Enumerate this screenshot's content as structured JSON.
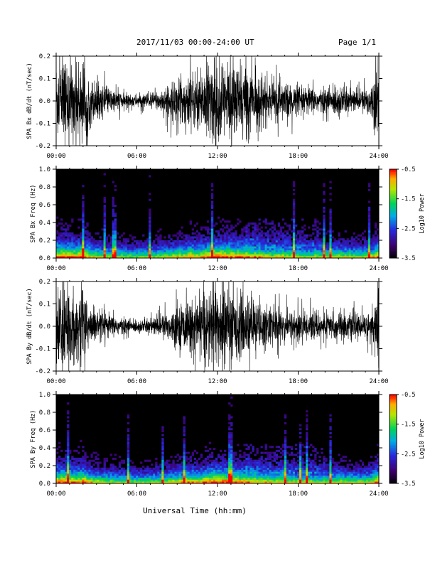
{
  "header": {
    "title": "2017/11/03  00:00-24:00 UT",
    "page": "Page 1/1"
  },
  "xaxis_label": "Universal Time (hh:mm)",
  "chart_data": [
    {
      "type": "line",
      "ylabel": "SPA Bx dB/dt (nT/sec)",
      "x_ticks": [
        "00:00",
        "06:00",
        "12:00",
        "18:00",
        "24:00"
      ],
      "xlim": [
        0,
        24
      ],
      "ylim": [
        -0.2,
        0.2
      ],
      "y_ticks": [
        "0.2",
        "0.1",
        "0.0",
        "-0.1",
        "-0.2"
      ],
      "envelope": {
        "x_hours": [
          0,
          0.5,
          1,
          1.5,
          2,
          2.5,
          3,
          3.5,
          4,
          4.5,
          5,
          5.5,
          6,
          6.5,
          7,
          7.5,
          8,
          8.5,
          9,
          9.5,
          10,
          10.5,
          11,
          11.5,
          12,
          12.5,
          13,
          13.5,
          14,
          14.5,
          15,
          15.5,
          16,
          16.5,
          17,
          17.5,
          18,
          18.5,
          19,
          19.5,
          20,
          20.5,
          21,
          21.5,
          22,
          22.5,
          23,
          23.5,
          24
        ],
        "amplitude": [
          0.2,
          0.2,
          0.19,
          0.17,
          0.2,
          0.12,
          0.09,
          0.07,
          0.06,
          0.05,
          0.04,
          0.035,
          0.03,
          0.035,
          0.04,
          0.05,
          0.06,
          0.08,
          0.11,
          0.12,
          0.15,
          0.13,
          0.16,
          0.2,
          0.2,
          0.2,
          0.19,
          0.17,
          0.18,
          0.15,
          0.13,
          0.11,
          0.09,
          0.1,
          0.09,
          0.08,
          0.07,
          0.06,
          0.07,
          0.06,
          0.06,
          0.07,
          0.08,
          0.07,
          0.06,
          0.05,
          0.06,
          0.09,
          0.2
        ]
      },
      "color": "#000000"
    },
    {
      "type": "heatmap",
      "ylabel": "SPA Bx Freq (Hz)",
      "x_ticks": [
        "00:00",
        "06:00",
        "12:00",
        "18:00",
        "24:00"
      ],
      "xlim": [
        0,
        24
      ],
      "ylim": [
        0.0,
        1.0
      ],
      "y_ticks": [
        "1.0",
        "0.8",
        "0.6",
        "0.4",
        "0.2",
        "0.0"
      ],
      "colorbar": {
        "label": "Log10 Power",
        "min": -3.5,
        "max": -0.5,
        "ticks": [
          "-0.5",
          "-1.5",
          "-2.5",
          "-3.5"
        ]
      }
    },
    {
      "type": "line",
      "ylabel": "SPA By dB/dt (nT/sec)",
      "x_ticks": [
        "00:00",
        "06:00",
        "12:00",
        "18:00",
        "24:00"
      ],
      "xlim": [
        0,
        24
      ],
      "ylim": [
        -0.2,
        0.2
      ],
      "y_ticks": [
        "0.2",
        "0.1",
        "0.0",
        "-0.1",
        "-0.2"
      ],
      "envelope": {
        "x_hours": [
          0,
          0.5,
          1,
          1.5,
          2,
          2.5,
          3,
          3.5,
          4,
          4.5,
          5,
          5.5,
          6,
          6.5,
          7,
          7.5,
          8,
          8.5,
          9,
          9.5,
          10,
          10.5,
          11,
          11.5,
          12,
          12.5,
          13,
          13.5,
          14,
          14.5,
          15,
          15.5,
          16,
          16.5,
          17,
          17.5,
          18,
          18.5,
          19,
          19.5,
          20,
          20.5,
          21,
          21.5,
          22,
          22.5,
          23,
          23.5,
          24
        ],
        "amplitude": [
          0.2,
          0.2,
          0.18,
          0.16,
          0.2,
          0.1,
          0.08,
          0.06,
          0.055,
          0.05,
          0.04,
          0.035,
          0.03,
          0.035,
          0.04,
          0.05,
          0.06,
          0.07,
          0.1,
          0.11,
          0.13,
          0.12,
          0.15,
          0.2,
          0.2,
          0.2,
          0.18,
          0.16,
          0.15,
          0.13,
          0.12,
          0.1,
          0.09,
          0.09,
          0.08,
          0.08,
          0.07,
          0.065,
          0.07,
          0.06,
          0.06,
          0.065,
          0.07,
          0.065,
          0.06,
          0.055,
          0.06,
          0.08,
          0.2
        ]
      },
      "color": "#000000"
    },
    {
      "type": "heatmap",
      "ylabel": "SPA By Freq (Hz)",
      "x_ticks": [
        "00:00",
        "06:00",
        "12:00",
        "18:00",
        "24:00"
      ],
      "xlim": [
        0,
        24
      ],
      "ylim": [
        0.0,
        1.0
      ],
      "y_ticks": [
        "1.0",
        "0.8",
        "0.6",
        "0.4",
        "0.2",
        "0.0"
      ],
      "colorbar": {
        "label": "Log10 Power",
        "min": -3.5,
        "max": -0.5,
        "ticks": [
          "-0.5",
          "-1.5",
          "-2.5",
          "-3.5"
        ]
      }
    }
  ]
}
